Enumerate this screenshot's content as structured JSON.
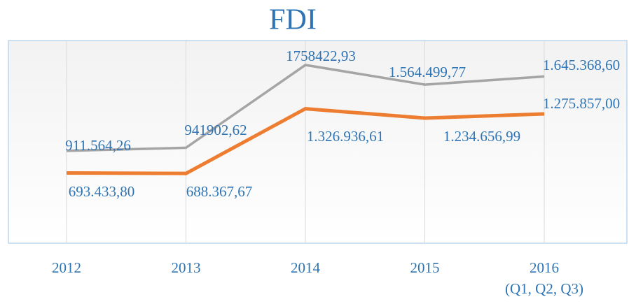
{
  "chart_data": {
    "type": "line",
    "title": "FDI",
    "categories": [
      "2012",
      "2013",
      "2014",
      "2015",
      "2016\n(Q1, Q2, Q3)"
    ],
    "series": [
      {
        "color": "#a5a5a5",
        "values": [
          911564.26,
          941902.62,
          1758422.93,
          1564499.77,
          1645368.6
        ],
        "value_labels": [
          "911.564,26",
          "941902,62",
          "1758422,93",
          "1.564.499,77",
          "1.645.368,60"
        ]
      },
      {
        "color": "#ed7d31",
        "values": [
          693433.8,
          688367.67,
          1326936.61,
          1234656.99,
          1275857.0
        ],
        "value_labels": [
          "693.433,80",
          "688.367,67",
          "1.326.936,61",
          "1.234.656,99",
          "1.275.857,00"
        ]
      }
    ],
    "ylim": [
      0,
      2000000
    ]
  }
}
